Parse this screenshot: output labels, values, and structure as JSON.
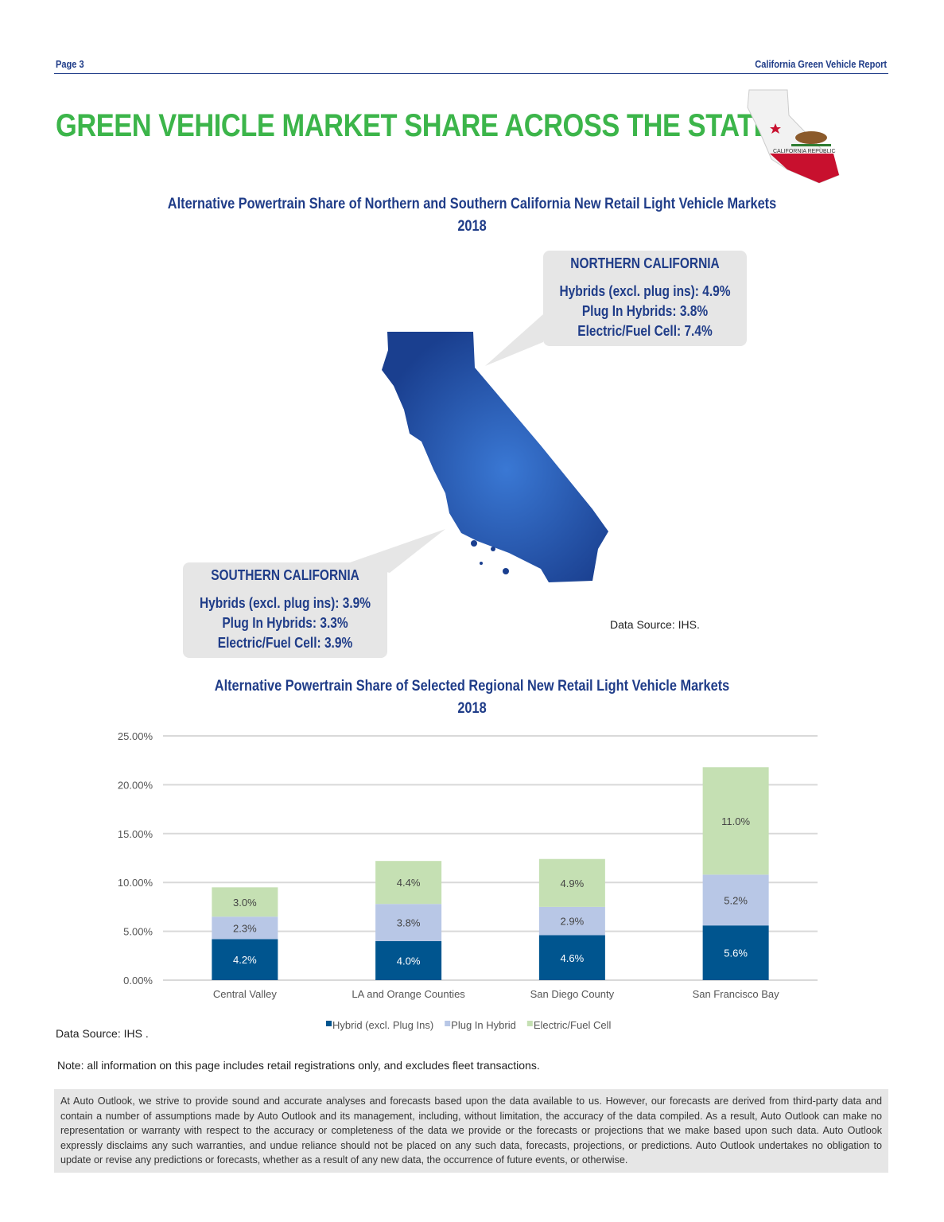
{
  "header": {
    "page": "Page 3",
    "report": "California Green Vehicle Report"
  },
  "title": "GREEN VEHICLE MARKET SHARE ACROSS THE STATE",
  "logo": {
    "text": "CALIFORNIA REPUBLIC"
  },
  "map_section": {
    "title": "Alternative Powertrain Share of Northern and Southern California New Retail Light Vehicle Markets",
    "year": "2018",
    "north": {
      "heading": "NORTHERN CALIFORNIA",
      "lines": [
        "Hybrids (excl. plug ins): 4.9%",
        "Plug In Hybrids: 3.8%",
        "Electric/Fuel Cell: 7.4%"
      ]
    },
    "south": {
      "heading": "SOUTHERN CALIFORNIA",
      "lines": [
        "Hybrids (excl. plug ins): 3.9%",
        "Plug In Hybrids: 3.3%",
        "Electric/Fuel Cell: 3.9%"
      ]
    },
    "source": "Data Source: IHS.",
    "map_color": "#2a5cb8"
  },
  "chart_data": {
    "type": "bar",
    "stacked": true,
    "title": "Alternative Powertrain Share of Selected Regional New Retail Light Vehicle Markets",
    "subtitle": "2018",
    "categories": [
      "Central Valley",
      "LA and Orange Counties",
      "San Diego County",
      "San Francisco Bay"
    ],
    "series": [
      {
        "name": "Hybrid (excl. Plug Ins)",
        "values": [
          4.2,
          4.0,
          4.6,
          5.6
        ],
        "labels": [
          "4.2%",
          "4.0%",
          "4.6%",
          "5.6%"
        ],
        "color": "#00558f"
      },
      {
        "name": "Plug In Hybrid",
        "values": [
          2.3,
          3.8,
          2.9,
          5.2
        ],
        "labels": [
          "2.3%",
          "3.8%",
          "2.9%",
          "5.2%"
        ],
        "color": "#b8c7e6"
      },
      {
        "name": "Electric/Fuel Cell",
        "values": [
          3.0,
          4.4,
          4.9,
          11.0
        ],
        "labels": [
          "3.0%",
          "4.4%",
          "4.9%",
          "11.0%"
        ],
        "color": "#c5e0b3"
      }
    ],
    "ylim": [
      0,
      25
    ],
    "yticks": [
      "0.00%",
      "5.00%",
      "10.00%",
      "15.00%",
      "20.00%",
      "25.00%"
    ],
    "grid": true,
    "legend": "bottom",
    "source": "Data Source: IHS ."
  },
  "note": "Note: all information on this page includes retail registrations only, and excludes fleet transactions.",
  "disclaimer": "At Auto Outlook, we strive to provide sound and accurate analyses and forecasts based upon the data available to us. However, our forecasts are derived from third-party data and contain a number of assumptions made by Auto Outlook and its management, including, without limitation, the accuracy of the data compiled. As a result, Auto Outlook can make no representation or warranty with respect to the accuracy or completeness of the data we provide or the forecasts or projections that we make based upon such data. Auto Outlook expressly disclaims any such warranties, and undue reliance should not be placed on any such data, forecasts, projections, or predictions. Auto Outlook undertakes no obligation to update or revise any predictions or forecasts, whether as a result of any new data, the occurrence of future events, or otherwise."
}
